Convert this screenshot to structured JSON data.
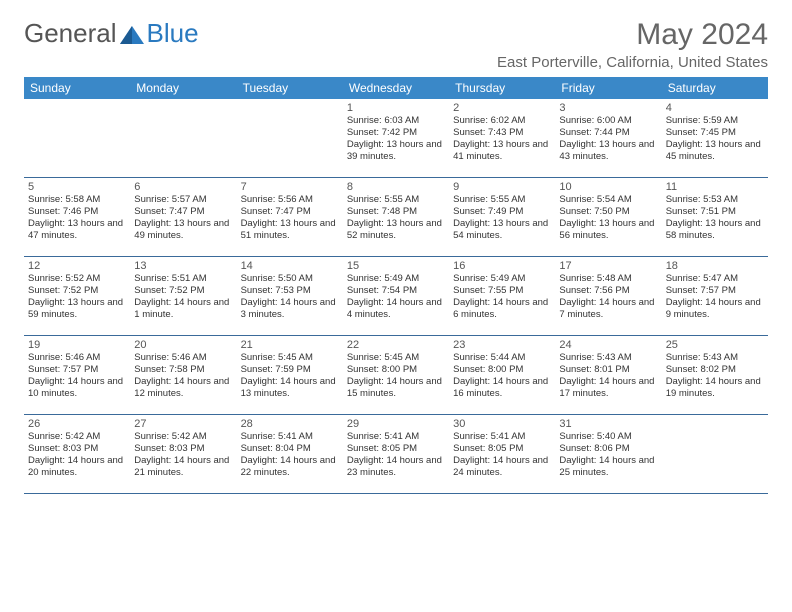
{
  "logo": {
    "text_general": "General",
    "text_blue": "Blue"
  },
  "header": {
    "month_title": "May 2024",
    "location": "East Porterville, California, United States"
  },
  "day_names": [
    "Sunday",
    "Monday",
    "Tuesday",
    "Wednesday",
    "Thursday",
    "Friday",
    "Saturday"
  ],
  "colors": {
    "header_bg": "#3a88c8",
    "rule": "#3a6a9a",
    "logo_blue": "#2a7ac0"
  },
  "weeks": [
    [
      {
        "n": "",
        "sr": "",
        "ss": "",
        "dl": ""
      },
      {
        "n": "",
        "sr": "",
        "ss": "",
        "dl": ""
      },
      {
        "n": "",
        "sr": "",
        "ss": "",
        "dl": ""
      },
      {
        "n": "1",
        "sr": "Sunrise: 6:03 AM",
        "ss": "Sunset: 7:42 PM",
        "dl": "Daylight: 13 hours and 39 minutes."
      },
      {
        "n": "2",
        "sr": "Sunrise: 6:02 AM",
        "ss": "Sunset: 7:43 PM",
        "dl": "Daylight: 13 hours and 41 minutes."
      },
      {
        "n": "3",
        "sr": "Sunrise: 6:00 AM",
        "ss": "Sunset: 7:44 PM",
        "dl": "Daylight: 13 hours and 43 minutes."
      },
      {
        "n": "4",
        "sr": "Sunrise: 5:59 AM",
        "ss": "Sunset: 7:45 PM",
        "dl": "Daylight: 13 hours and 45 minutes."
      }
    ],
    [
      {
        "n": "5",
        "sr": "Sunrise: 5:58 AM",
        "ss": "Sunset: 7:46 PM",
        "dl": "Daylight: 13 hours and 47 minutes."
      },
      {
        "n": "6",
        "sr": "Sunrise: 5:57 AM",
        "ss": "Sunset: 7:47 PM",
        "dl": "Daylight: 13 hours and 49 minutes."
      },
      {
        "n": "7",
        "sr": "Sunrise: 5:56 AM",
        "ss": "Sunset: 7:47 PM",
        "dl": "Daylight: 13 hours and 51 minutes."
      },
      {
        "n": "8",
        "sr": "Sunrise: 5:55 AM",
        "ss": "Sunset: 7:48 PM",
        "dl": "Daylight: 13 hours and 52 minutes."
      },
      {
        "n": "9",
        "sr": "Sunrise: 5:55 AM",
        "ss": "Sunset: 7:49 PM",
        "dl": "Daylight: 13 hours and 54 minutes."
      },
      {
        "n": "10",
        "sr": "Sunrise: 5:54 AM",
        "ss": "Sunset: 7:50 PM",
        "dl": "Daylight: 13 hours and 56 minutes."
      },
      {
        "n": "11",
        "sr": "Sunrise: 5:53 AM",
        "ss": "Sunset: 7:51 PM",
        "dl": "Daylight: 13 hours and 58 minutes."
      }
    ],
    [
      {
        "n": "12",
        "sr": "Sunrise: 5:52 AM",
        "ss": "Sunset: 7:52 PM",
        "dl": "Daylight: 13 hours and 59 minutes."
      },
      {
        "n": "13",
        "sr": "Sunrise: 5:51 AM",
        "ss": "Sunset: 7:52 PM",
        "dl": "Daylight: 14 hours and 1 minute."
      },
      {
        "n": "14",
        "sr": "Sunrise: 5:50 AM",
        "ss": "Sunset: 7:53 PM",
        "dl": "Daylight: 14 hours and 3 minutes."
      },
      {
        "n": "15",
        "sr": "Sunrise: 5:49 AM",
        "ss": "Sunset: 7:54 PM",
        "dl": "Daylight: 14 hours and 4 minutes."
      },
      {
        "n": "16",
        "sr": "Sunrise: 5:49 AM",
        "ss": "Sunset: 7:55 PM",
        "dl": "Daylight: 14 hours and 6 minutes."
      },
      {
        "n": "17",
        "sr": "Sunrise: 5:48 AM",
        "ss": "Sunset: 7:56 PM",
        "dl": "Daylight: 14 hours and 7 minutes."
      },
      {
        "n": "18",
        "sr": "Sunrise: 5:47 AM",
        "ss": "Sunset: 7:57 PM",
        "dl": "Daylight: 14 hours and 9 minutes."
      }
    ],
    [
      {
        "n": "19",
        "sr": "Sunrise: 5:46 AM",
        "ss": "Sunset: 7:57 PM",
        "dl": "Daylight: 14 hours and 10 minutes."
      },
      {
        "n": "20",
        "sr": "Sunrise: 5:46 AM",
        "ss": "Sunset: 7:58 PM",
        "dl": "Daylight: 14 hours and 12 minutes."
      },
      {
        "n": "21",
        "sr": "Sunrise: 5:45 AM",
        "ss": "Sunset: 7:59 PM",
        "dl": "Daylight: 14 hours and 13 minutes."
      },
      {
        "n": "22",
        "sr": "Sunrise: 5:45 AM",
        "ss": "Sunset: 8:00 PM",
        "dl": "Daylight: 14 hours and 15 minutes."
      },
      {
        "n": "23",
        "sr": "Sunrise: 5:44 AM",
        "ss": "Sunset: 8:00 PM",
        "dl": "Daylight: 14 hours and 16 minutes."
      },
      {
        "n": "24",
        "sr": "Sunrise: 5:43 AM",
        "ss": "Sunset: 8:01 PM",
        "dl": "Daylight: 14 hours and 17 minutes."
      },
      {
        "n": "25",
        "sr": "Sunrise: 5:43 AM",
        "ss": "Sunset: 8:02 PM",
        "dl": "Daylight: 14 hours and 19 minutes."
      }
    ],
    [
      {
        "n": "26",
        "sr": "Sunrise: 5:42 AM",
        "ss": "Sunset: 8:03 PM",
        "dl": "Daylight: 14 hours and 20 minutes."
      },
      {
        "n": "27",
        "sr": "Sunrise: 5:42 AM",
        "ss": "Sunset: 8:03 PM",
        "dl": "Daylight: 14 hours and 21 minutes."
      },
      {
        "n": "28",
        "sr": "Sunrise: 5:41 AM",
        "ss": "Sunset: 8:04 PM",
        "dl": "Daylight: 14 hours and 22 minutes."
      },
      {
        "n": "29",
        "sr": "Sunrise: 5:41 AM",
        "ss": "Sunset: 8:05 PM",
        "dl": "Daylight: 14 hours and 23 minutes."
      },
      {
        "n": "30",
        "sr": "Sunrise: 5:41 AM",
        "ss": "Sunset: 8:05 PM",
        "dl": "Daylight: 14 hours and 24 minutes."
      },
      {
        "n": "31",
        "sr": "Sunrise: 5:40 AM",
        "ss": "Sunset: 8:06 PM",
        "dl": "Daylight: 14 hours and 25 minutes."
      },
      {
        "n": "",
        "sr": "",
        "ss": "",
        "dl": ""
      }
    ]
  ]
}
